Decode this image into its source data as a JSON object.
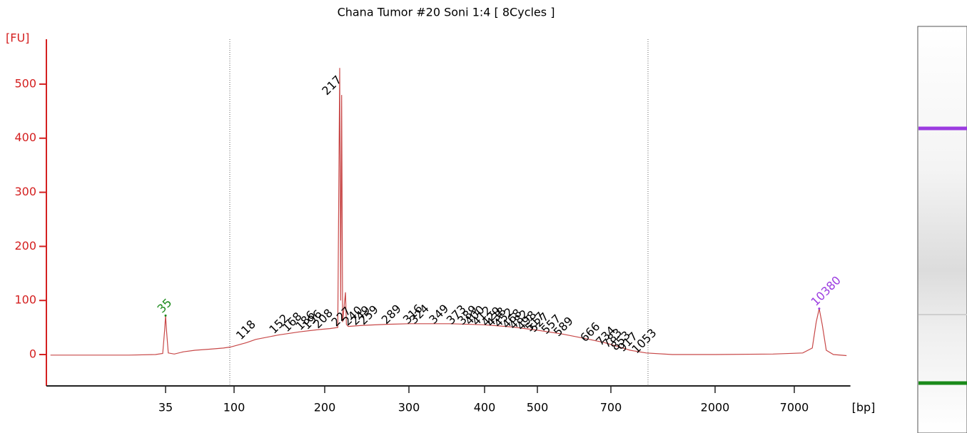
{
  "chart_data": {
    "type": "line",
    "title": "Chana Tumor #20 Soni 1:4  [ 8Cycles ]",
    "y_label": "[FU]",
    "x_label": "[bp]",
    "xscale": "log",
    "xlim": [
      6,
      17000
    ],
    "xticks": [
      35,
      100,
      200,
      300,
      400,
      500,
      700,
      2000,
      7000
    ],
    "ylim": [
      -58,
      583
    ],
    "yticks": [
      0,
      100,
      200,
      300,
      400,
      500
    ],
    "axis_color": "#d42020",
    "series": [
      {
        "color": "#c84848",
        "x": [
          6,
          12,
          20,
          30,
          33.5,
          34.5,
          35,
          35.5,
          36.5,
          40,
          46,
          55,
          70,
          85,
          95,
          110,
          118,
          140,
          165,
          190,
          205,
          213,
          215,
          216,
          217,
          218,
          221,
          222,
          224,
          240,
          270,
          300,
          350,
          400,
          450,
          500,
          560,
          620,
          680,
          750,
          850,
          1000,
          1300,
          2000,
          5000,
          8000,
          9300,
          9900,
          10380,
          10900,
          11600,
          13000,
          16000
        ],
        "values": [
          -1,
          -1,
          -1,
          0,
          2,
          45,
          72,
          45,
          3,
          1,
          5,
          8,
          10,
          12,
          14,
          22,
          28,
          36,
          42,
          46,
          48,
          50,
          530,
          100,
          480,
          60,
          115,
          56,
          52,
          54,
          56,
          57,
          57,
          55,
          51,
          45,
          38,
          30,
          22,
          15,
          8,
          3,
          0,
          0,
          1,
          3,
          12,
          60,
          85,
          55,
          8,
          0,
          -2
        ]
      }
    ],
    "markers": [
      {
        "label": "35",
        "x": 35,
        "y": 72,
        "color": "#1a8a1a"
      },
      {
        "label": "10380",
        "x": 10380,
        "y": 85,
        "color": "#9b3be0"
      }
    ],
    "peak_labels": [
      118,
      152,
      168,
      186,
      196,
      208,
      217,
      227,
      240,
      249,
      259,
      289,
      316,
      324,
      349,
      373,
      389,
      400,
      412,
      429,
      438,
      452,
      468,
      482,
      498,
      517,
      527,
      557,
      589,
      666,
      734,
      783,
      853,
      917,
      1053
    ]
  }
}
